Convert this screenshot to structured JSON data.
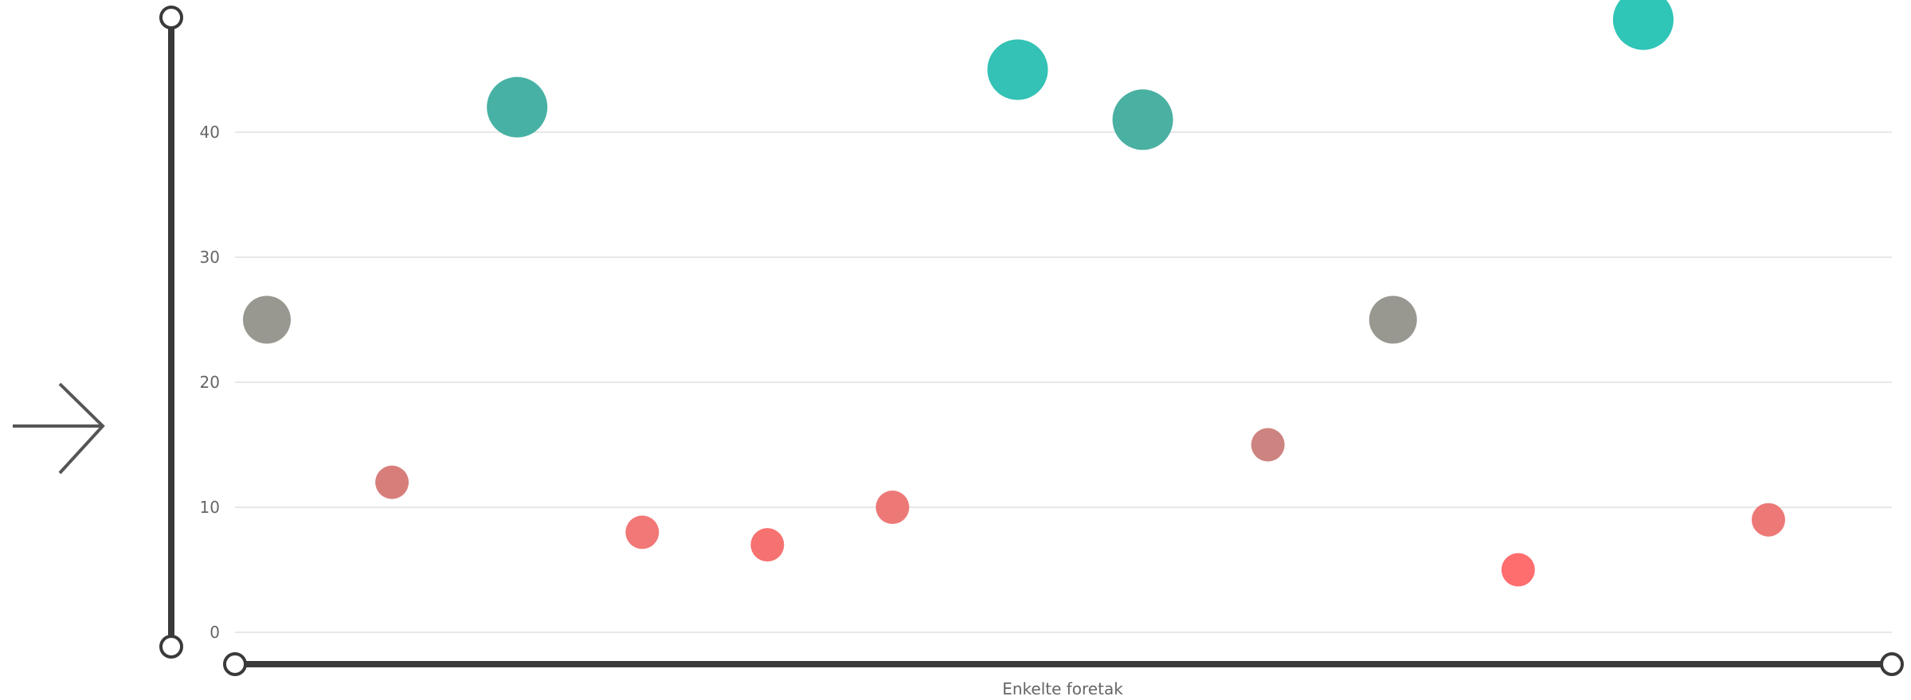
{
  "chart_data": {
    "type": "scatter",
    "xlabel": "Enkelte foretak",
    "ylabel": "",
    "ylim": [
      0,
      50
    ],
    "yticks": [
      0,
      10,
      20,
      30,
      40
    ],
    "grid": true,
    "legend": "none",
    "points": [
      {
        "x": 1,
        "y": 25,
        "size": 2,
        "color": "#8f8f87"
      },
      {
        "x": 2,
        "y": 12,
        "size": 1,
        "color": "#d47370"
      },
      {
        "x": 3,
        "y": 42,
        "size": 3,
        "color": "#36aa9c"
      },
      {
        "x": 4,
        "y": 8,
        "size": 1,
        "color": "#f06c6a"
      },
      {
        "x": 5,
        "y": 7,
        "size": 1,
        "color": "#f56665"
      },
      {
        "x": 6,
        "y": 10,
        "size": 1,
        "color": "#ec6e6b"
      },
      {
        "x": 7,
        "y": 45,
        "size": 3,
        "color": "#22bdaf"
      },
      {
        "x": 8,
        "y": 41,
        "size": 3,
        "color": "#3ba99a"
      },
      {
        "x": 9,
        "y": 15,
        "size": 1,
        "color": "#c97874"
      },
      {
        "x": 10,
        "y": 25,
        "size": 2,
        "color": "#8f8f87"
      },
      {
        "x": 11,
        "y": 5,
        "size": 1,
        "color": "#fe6262"
      },
      {
        "x": 12,
        "y": 49,
        "size": 3,
        "color": "#1dc0b1"
      },
      {
        "x": 13,
        "y": 9,
        "size": 1,
        "color": "#ec6e6b"
      }
    ]
  },
  "icons": {
    "expand_arrow": "arrow-right-icon"
  }
}
